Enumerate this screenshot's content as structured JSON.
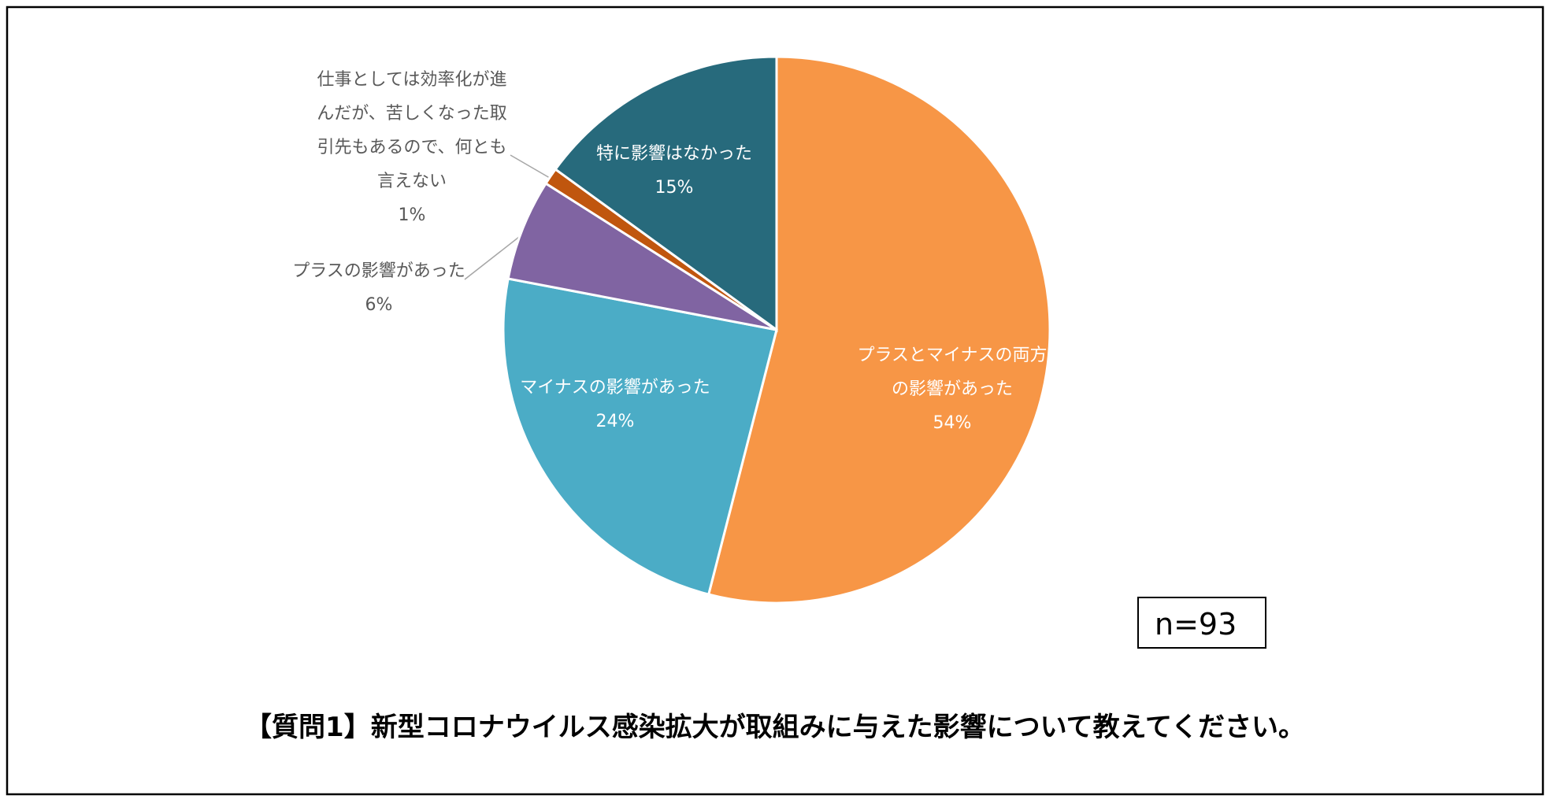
{
  "chart_data": {
    "type": "pie",
    "title": "【質問1】新型コロナウイルス感染拡大が取組みに与えた影響について教えてください。",
    "categories": [
      "プラスとマイナスの両方の影響があった",
      "マイナスの影響があった",
      "プラスの影響があった",
      "仕事としては効率化が進んだが、苦しくなった取引先もあるので、何とも言えない",
      "特に影響はなかった"
    ],
    "values": [
      54,
      24,
      6,
      1,
      15
    ],
    "value_labels": [
      "54%",
      "24%",
      "6%",
      "1%",
      "15%"
    ],
    "colors": [
      "#f79646",
      "#4bacc6",
      "#8064a2",
      "#c0560e",
      "#276a7c"
    ],
    "annotation": "n=93"
  }
}
